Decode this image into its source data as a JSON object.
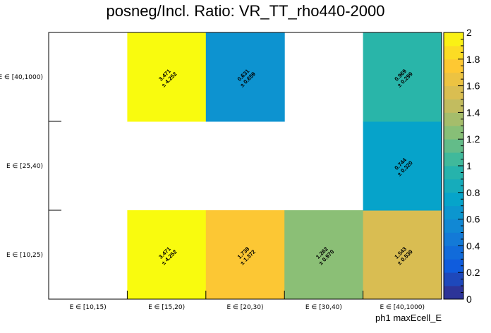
{
  "chart_data": {
    "type": "heatmap",
    "title": "posneg/Incl. Ratio: VR_TT_rho440-2000",
    "xlabel": "ph1 maxEcell_E",
    "ylabel": "",
    "x_categories": [
      "E ∈ [10,15)",
      "E ∈ [15,20)",
      "E ∈ [20,30)",
      "E ∈ [30,40)",
      "E ∈ [40,1000)"
    ],
    "y_categories": [
      "E ∈ [10,25)",
      "E ∈ [25,40)",
      "E ∈ [40,1000)"
    ],
    "zlim": [
      0,
      2
    ],
    "z_ticks": [
      "0",
      "0.2",
      "0.4",
      "0.6",
      "0.8",
      "1",
      "1.2",
      "1.4",
      "1.6",
      "1.8",
      "2"
    ],
    "cells": [
      {
        "x": 1,
        "y": 0,
        "value": 3.471,
        "error": 4.252,
        "label": "3.471",
        "err_label": "± 4.252"
      },
      {
        "x": 2,
        "y": 0,
        "value": 1.738,
        "error": 1.372,
        "label": "1.738",
        "err_label": "± 1.372"
      },
      {
        "x": 3,
        "y": 0,
        "value": 1.262,
        "error": 0.97,
        "label": "1.262",
        "err_label": "± 0.970"
      },
      {
        "x": 4,
        "y": 0,
        "value": 1.543,
        "error": 0.539,
        "label": "1.543",
        "err_label": "± 0.539"
      },
      {
        "x": 4,
        "y": 1,
        "value": 0.744,
        "error": 0.32,
        "label": "0.744",
        "err_label": "± 0.320"
      },
      {
        "x": 1,
        "y": 2,
        "value": 3.471,
        "error": 4.252,
        "label": "3.471",
        "err_label": "± 4.252"
      },
      {
        "x": 2,
        "y": 2,
        "value": 0.631,
        "error": 0.659,
        "label": "0.631",
        "err_label": "± 0.659"
      },
      {
        "x": 4,
        "y": 2,
        "value": 0.969,
        "error": 0.299,
        "label": "0.969",
        "err_label": "± 0.299"
      }
    ],
    "colorscale": [
      "#352a87",
      "#0f5cdd",
      "#1481d6",
      "#06a4ca",
      "#2eb7a4",
      "#87bf77",
      "#d1bb59",
      "#fec832",
      "#f9fb0e"
    ]
  }
}
